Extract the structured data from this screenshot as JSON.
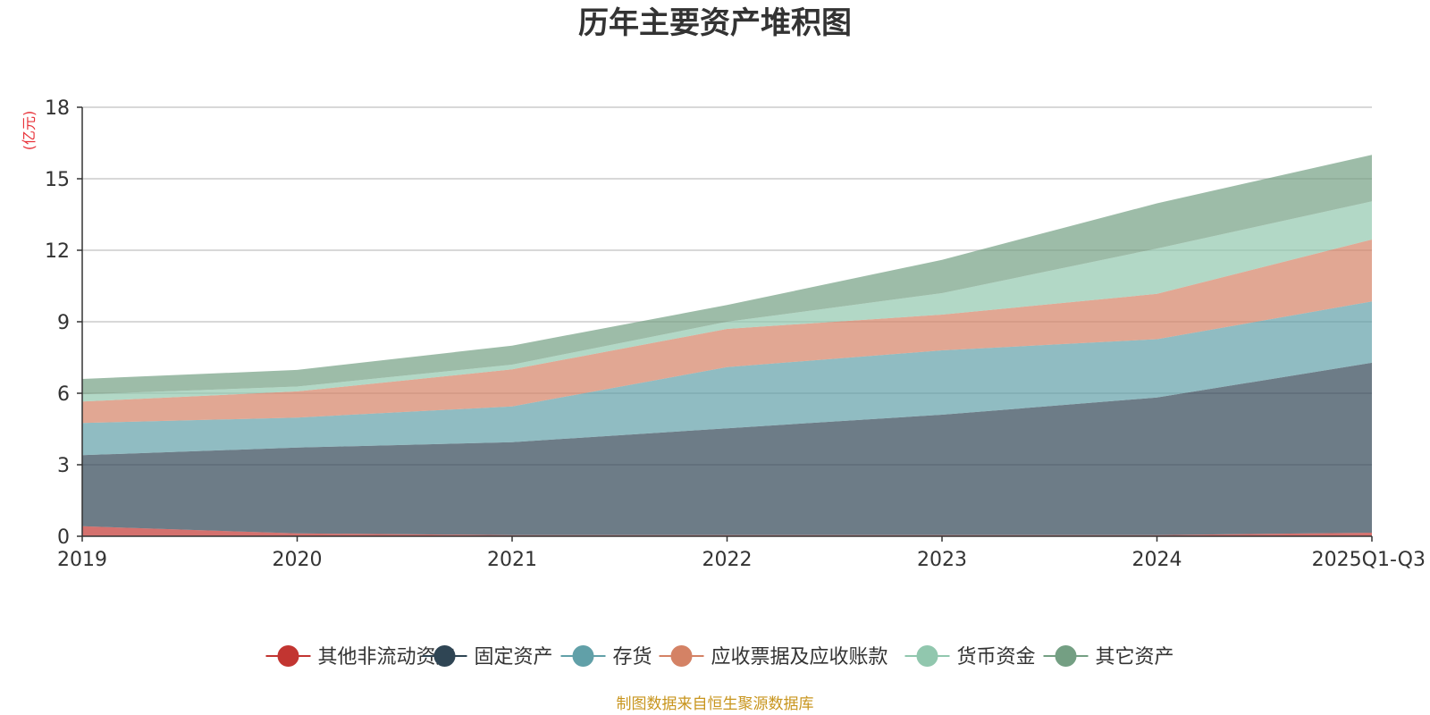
{
  "chart_data": {
    "type": "area",
    "stacked": true,
    "title": "历年主要资产堆积图",
    "ylabel": "(亿元)",
    "xlabel": "",
    "categories": [
      "2019",
      "2020",
      "2021",
      "2022",
      "2023",
      "2024",
      "2025Q1-Q3"
    ],
    "ylim": [
      0,
      18
    ],
    "yticks": [
      0,
      3,
      6,
      9,
      12,
      15,
      18
    ],
    "grid": true,
    "legend_position": "bottom",
    "series": [
      {
        "name": "其他非流动资产",
        "color": "#c23531",
        "values": [
          0.42,
          0.12,
          0.05,
          0.05,
          0.05,
          0.05,
          0.15
        ]
      },
      {
        "name": "固定资产",
        "color": "#2f4554",
        "values": [
          2.98,
          3.6,
          3.9,
          4.48,
          5.05,
          5.77,
          7.13
        ]
      },
      {
        "name": "存货",
        "color": "#61a0a8",
        "values": [
          1.35,
          1.26,
          1.5,
          2.57,
          2.7,
          2.45,
          2.57
        ]
      },
      {
        "name": "应收票据及应收账款",
        "color": "#d48265",
        "values": [
          0.9,
          1.1,
          1.55,
          1.6,
          1.5,
          1.9,
          2.6
        ]
      },
      {
        "name": "货币资金",
        "color": "#91c7ae",
        "values": [
          0.3,
          0.2,
          0.2,
          0.3,
          0.9,
          1.9,
          1.6
        ]
      },
      {
        "name": "其它资产",
        "color": "#749f83",
        "values": [
          0.65,
          0.7,
          0.8,
          0.7,
          1.4,
          1.9,
          1.95
        ]
      }
    ]
  },
  "footer": {
    "source": "制图数据来自恒生聚源数据库"
  }
}
